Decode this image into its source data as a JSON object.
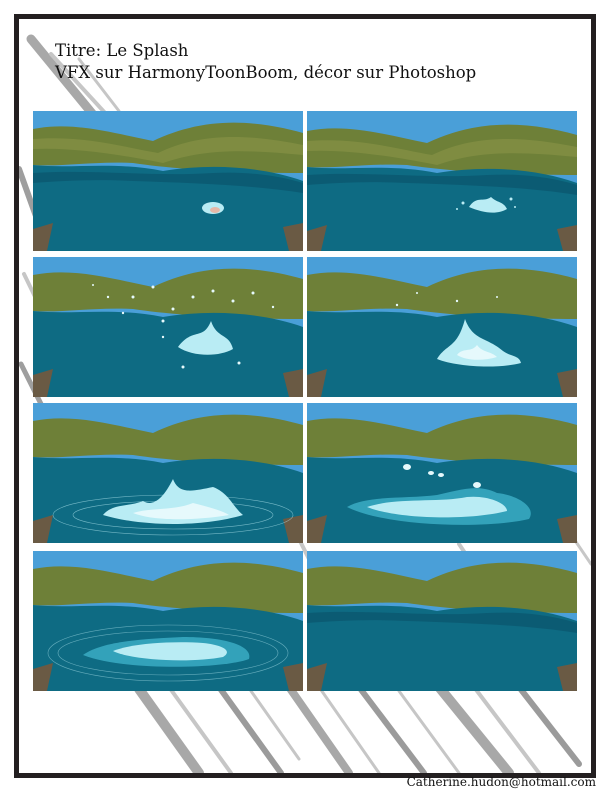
{
  "title": {
    "line1": "Titre: Le Splash",
    "line2": "VFX sur HarmonyToonBoom, décor sur Photoshop"
  },
  "credit": "Catherine.hudon@hotmail.com",
  "colors": {
    "sky": "#4a9fd8",
    "hill_dark": "#4d5f2a",
    "hill": "#6e8038",
    "hill_light": "#8a9548",
    "water": "#0e6b83",
    "water_deep": "#0a4f66",
    "rock": "#6a5a44",
    "splash": "#b9ecf4",
    "splash_light": "#e6f9fc"
  },
  "panels": [
    {
      "frame": 1,
      "stage": "drop-impact"
    },
    {
      "frame": 2,
      "stage": "small-splash"
    },
    {
      "frame": 3,
      "stage": "spray-burst"
    },
    {
      "frame": 4,
      "stage": "crown-rise"
    },
    {
      "frame": 5,
      "stage": "wide-crown"
    },
    {
      "frame": 6,
      "stage": "spreading-foam"
    },
    {
      "frame": 7,
      "stage": "fading-ripples"
    },
    {
      "frame": 8,
      "stage": "calm-water"
    }
  ]
}
